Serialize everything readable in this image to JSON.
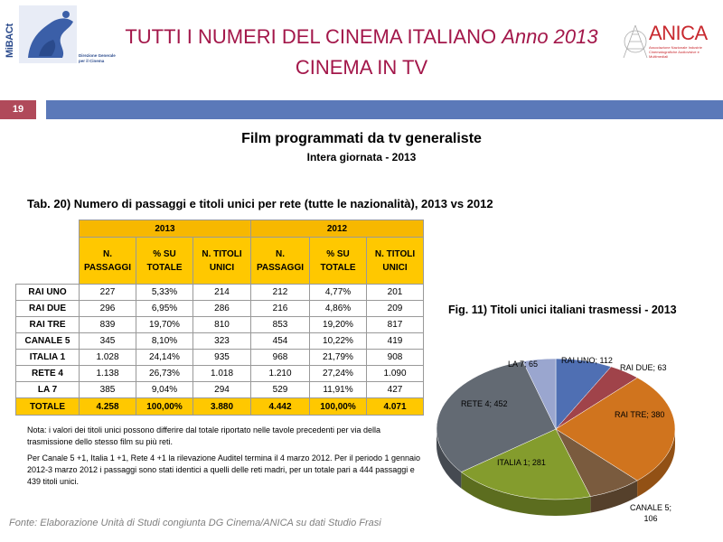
{
  "header": {
    "title_main": "TUTTI I NUMERI DEL CINEMA ITALIANO ",
    "title_italic": "Anno 2013",
    "title_line2": "CINEMA IN TV",
    "logo_left_text": "MiBACt",
    "logo_left_dg_line1": "Direzione Generale",
    "logo_left_dg_line2": "per il Cinema",
    "logo_right_text": "ANICA",
    "logo_right_sub": "Associazione Nazionale Industrie Cinematografiche Audiovisive e Multimediali"
  },
  "slide_number": "19",
  "section": {
    "title": "Film programmati da tv generaliste",
    "subtitle": "Intera giornata - 2013"
  },
  "table": {
    "caption": "Tab. 20) Numero di passaggi e titoli unici per rete (tutte le nazionalità), 2013 vs 2012",
    "year_a": "2013",
    "year_b": "2012",
    "headers": [
      [
        "N.",
        "PASSAGGI"
      ],
      [
        "% SU",
        "TOTALE"
      ],
      [
        "N. TITOLI",
        "UNICI"
      ],
      [
        "N.",
        "PASSAGGI"
      ],
      [
        "% SU",
        "TOTALE"
      ],
      [
        "N. TITOLI",
        "UNICI"
      ]
    ],
    "rows": [
      {
        "rete": "RAI UNO",
        "cells": [
          "227",
          "5,33%",
          "214",
          "212",
          "4,77%",
          "201"
        ]
      },
      {
        "rete": "RAI DUE",
        "cells": [
          "296",
          "6,95%",
          "286",
          "216",
          "4,86%",
          "209"
        ]
      },
      {
        "rete": "RAI TRE",
        "cells": [
          "839",
          "19,70%",
          "810",
          "853",
          "19,20%",
          "817"
        ]
      },
      {
        "rete": "CANALE 5",
        "cells": [
          "345",
          "8,10%",
          "323",
          "454",
          "10,22%",
          "419"
        ]
      },
      {
        "rete": "ITALIA 1",
        "cells": [
          "1.028",
          "24,14%",
          "935",
          "968",
          "21,79%",
          "908"
        ]
      },
      {
        "rete": "RETE 4",
        "cells": [
          "1.138",
          "26,73%",
          "1.018",
          "1.210",
          "27,24%",
          "1.090"
        ]
      },
      {
        "rete": "LA 7",
        "cells": [
          "385",
          "9,04%",
          "294",
          "529",
          "11,91%",
          "427"
        ]
      }
    ],
    "total": {
      "rete": "TOTALE",
      "cells": [
        "4.258",
        "100,00%",
        "3.880",
        "4.442",
        "100,00%",
        "4.071"
      ]
    }
  },
  "notes": {
    "note1": "Nota:  i valori dei titoli unici possono differire dal totale riportato nelle tavole precedenti per via della trasmissione dello stesso film su più reti.",
    "note2": "Per Canale 5 +1, Italia 1 +1, Rete 4 +1 la rilevazione Auditel termina il 4 marzo 2012. Per il periodo 1 gennaio 2012-3 marzo 2012 i passaggi sono stati identici a quelli delle reti madri, per un totale pari a 444 passaggi e 439 titoli unici."
  },
  "source": "Fonte: Elaborazione Unità di Studi congiunta DG Cinema/ANICA su dati Studio Frasi",
  "chart_data": {
    "type": "pie",
    "title": "Fig. 11) Titoli unici italiani trasmessi  - 2013",
    "slices": [
      {
        "label": "RAI UNO",
        "value": 112,
        "text": "RAI UNO; 112",
        "color": "#4f6fb3"
      },
      {
        "label": "RAI DUE",
        "value": 63,
        "text": "RAI DUE; 63",
        "color": "#a0434a"
      },
      {
        "label": "RAI TRE",
        "value": 380,
        "text": "RAI TRE; 380",
        "color": "#d0741e"
      },
      {
        "label": "CANALE 5",
        "value": 106,
        "text": "CANALE 5; 106",
        "color": "#7a5b3e"
      },
      {
        "label": "ITALIA 1",
        "value": 281,
        "text": "ITALIA 1; 281",
        "color": "#849c2d"
      },
      {
        "label": "RETE 4",
        "value": 452,
        "text": "RETE 4; 452",
        "color": "#636a73"
      },
      {
        "label": "LA 7",
        "value": 65,
        "text": "LA 7; 65",
        "color": "#9aa6cf"
      }
    ]
  }
}
